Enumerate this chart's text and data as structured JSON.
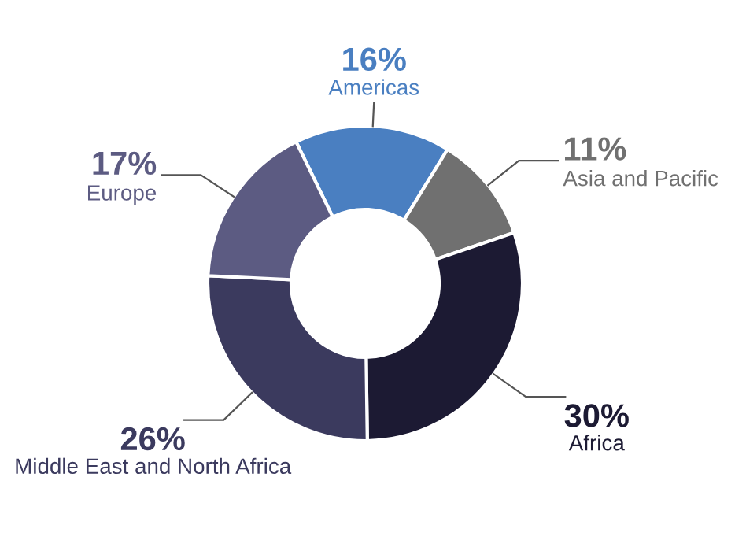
{
  "chart_data": {
    "type": "donut",
    "categories": [
      "Americas",
      "Asia and Pacific",
      "Africa",
      "Middle East and North Africa",
      "Europe"
    ],
    "values": [
      16,
      11,
      30,
      26,
      17
    ],
    "colors": [
      "#4a7fc1",
      "#707070",
      "#1c1a33",
      "#3b3a5e",
      "#5c5b82"
    ],
    "value_labels": [
      "16%",
      "11%",
      "30%",
      "26%",
      "17%"
    ]
  }
}
